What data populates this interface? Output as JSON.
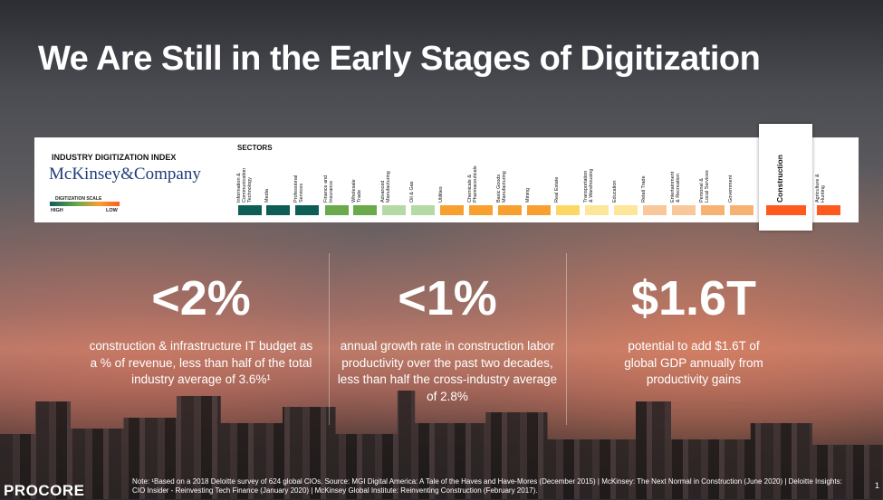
{
  "title": "We Are Still in the Early Stages of Digitization",
  "index": {
    "heading": "INDUSTRY DIGITIZATION INDEX",
    "brand": "McKinsey&Company",
    "scale_label": "DIGITIZATION SCALE",
    "high": "HIGH",
    "low": "LOW",
    "sectors_label": "SECTORS",
    "sectors": [
      {
        "name": "Information &\nCommunication\nTechnology",
        "color": "#0e5e57"
      },
      {
        "name": "Media",
        "color": "#0e5e57"
      },
      {
        "name": "Professional\nServices",
        "color": "#0e5e57"
      },
      {
        "name": "Finance and\nInsurance",
        "color": "#6aaa4a"
      },
      {
        "name": "Wholesale\nTrade",
        "color": "#6aaa4a"
      },
      {
        "name": "Advanced\nManufacturing",
        "color": "#b5d9a5"
      },
      {
        "name": "Oil & Gas",
        "color": "#b5d9a5"
      },
      {
        "name": "Utilities",
        "color": "#f7a030"
      },
      {
        "name": "Chemicals &\nPharmaceuticals",
        "color": "#f7a030"
      },
      {
        "name": "Basic Goods\nManufacturing",
        "color": "#f7a030"
      },
      {
        "name": "Mining",
        "color": "#f7a030"
      },
      {
        "name": "Real Estate",
        "color": "#fdd766"
      },
      {
        "name": "Transportation\n& Warehousing",
        "color": "#fde59a"
      },
      {
        "name": "Education",
        "color": "#fde59a"
      },
      {
        "name": "Retail Trade",
        "color": "#f9c89a"
      },
      {
        "name": "Entertainment\n& Recreation",
        "color": "#f9c89a"
      },
      {
        "name": "Personal &\nLocal Services",
        "color": "#f6b173"
      },
      {
        "name": "Government",
        "color": "#f6b173"
      },
      {
        "name": "Construction",
        "color": "#ff5a1e"
      },
      {
        "name": "Agriculture &\nHunting",
        "color": "#ff5a1e"
      }
    ]
  },
  "stats": [
    {
      "value": "<2%",
      "desc": "construction & infrastructure IT budget as a % of revenue, less than half of the total industry average of 3.6%¹"
    },
    {
      "value": "<1%",
      "desc": "annual growth rate in construction labor productivity over the past two decades, less than half the cross-industry average of 2.8%"
    },
    {
      "value": "$1.6T",
      "desc": "potential to add $1.6T of global GDP annually from productivity gains"
    }
  ],
  "logo": "PROCORE",
  "note": "Note: ¹Based on a 2018 Deloitte survey of 624 global CIOs. Source: MGI Digital America: A Tale of the Haves and Have-Mores (December 2015) | McKinsey: The Next Normal in Construction (June 2020) | Deloitte Insights: CIO Insider - Reinvesting Tech Finance (January 2020) | McKinsey Global Institute: Reinventing Construction (February 2017).",
  "page": "1"
}
